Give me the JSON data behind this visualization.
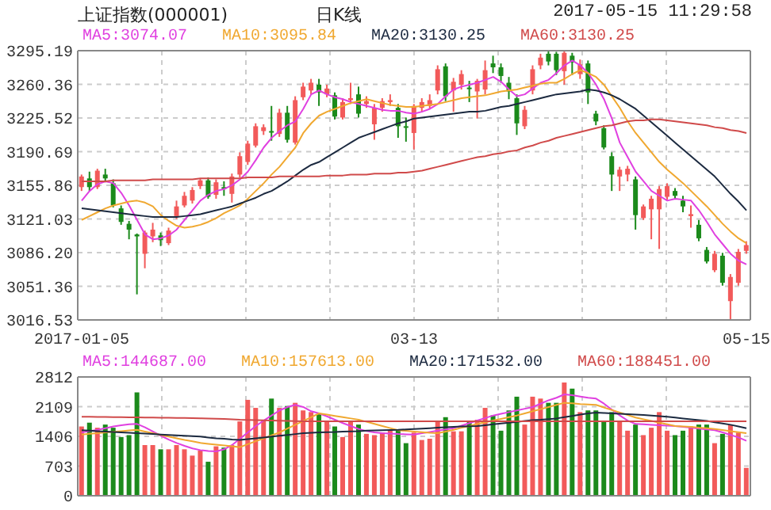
{
  "chart_data": [
    {
      "type": "candlestick",
      "title": "上证指数(000001)",
      "subtitle": "日K线",
      "annotations": [
        "2017-05-15 11:29:58"
      ],
      "categories": [
        "2017-01-05",
        null,
        null,
        null,
        null,
        null,
        null,
        null,
        null,
        null,
        null,
        null,
        null,
        null,
        null,
        null,
        null,
        null,
        null,
        null,
        null,
        null,
        null,
        null,
        null,
        null,
        null,
        null,
        null,
        null,
        null,
        null,
        null,
        null,
        null,
        null,
        null,
        null,
        null,
        null,
        null,
        null,
        "03-13",
        null,
        null,
        null,
        null,
        null,
        null,
        null,
        null,
        null,
        null,
        null,
        null,
        null,
        null,
        null,
        null,
        null,
        null,
        null,
        null,
        null,
        null,
        null,
        null,
        null,
        null,
        null,
        null,
        null,
        null,
        null,
        null,
        null,
        null,
        null,
        null,
        null,
        null,
        null,
        null,
        null,
        "05-15"
      ],
      "ohlc": [
        [
          3154,
          3167,
          3150,
          3165
        ],
        [
          3163,
          3170,
          3150,
          3154
        ],
        [
          3154,
          3173,
          3152,
          3171
        ],
        [
          3167,
          3173,
          3159,
          3163
        ],
        [
          3158,
          3162,
          3133,
          3135
        ],
        [
          3132,
          3135,
          3115,
          3118
        ],
        [
          3116,
          3119,
          3100,
          3110
        ],
        [
          3105,
          3106,
          3043,
          3103
        ],
        [
          3085,
          3109,
          3070,
          3107
        ],
        [
          3103,
          3117,
          3097,
          3110
        ],
        [
          3104,
          3107,
          3093,
          3099
        ],
        [
          3096,
          3112,
          3094,
          3109
        ],
        [
          3124,
          3140,
          3121,
          3134
        ],
        [
          3135,
          3149,
          3133,
          3145
        ],
        [
          3140,
          3154,
          3137,
          3151
        ],
        [
          3155,
          3163,
          3152,
          3161
        ],
        [
          3161,
          3164,
          3142,
          3144
        ],
        [
          3146,
          3162,
          3142,
          3159
        ],
        [
          3154,
          3160,
          3145,
          3152
        ],
        [
          3147,
          3168,
          3138,
          3165
        ],
        [
          3167,
          3190,
          3164,
          3186
        ],
        [
          3180,
          3202,
          3177,
          3199
        ],
        [
          3197,
          3220,
          3195,
          3217
        ],
        [
          3212,
          3219,
          3208,
          3216
        ],
        [
          3212,
          3238,
          3202,
          3211
        ],
        [
          3209,
          3235,
          3206,
          3231
        ],
        [
          3231,
          3238,
          3200,
          3203
        ],
        [
          3200,
          3248,
          3198,
          3244
        ],
        [
          3247,
          3262,
          3244,
          3258
        ],
        [
          3254,
          3266,
          3250,
          3262
        ],
        [
          3260,
          3266,
          3238,
          3252
        ],
        [
          3250,
          3260,
          3247,
          3256
        ],
        [
          3249,
          3252,
          3224,
          3227
        ],
        [
          3226,
          3246,
          3224,
          3242
        ],
        [
          3244,
          3262,
          3240,
          3246
        ],
        [
          3250,
          3258,
          3226,
          3230
        ],
        [
          3240,
          3248,
          3236,
          3243
        ],
        [
          3219,
          3240,
          3203,
          3236
        ],
        [
          3236,
          3246,
          3232,
          3243
        ],
        [
          3242,
          3250,
          3238,
          3244
        ],
        [
          3236,
          3240,
          3205,
          3217
        ],
        [
          3217,
          3226,
          3201,
          3216
        ],
        [
          3210,
          3240,
          3193,
          3238
        ],
        [
          3236,
          3246,
          3232,
          3242
        ],
        [
          3238,
          3250,
          3235,
          3244
        ],
        [
          3254,
          3280,
          3250,
          3276
        ],
        [
          3279,
          3282,
          3243,
          3248
        ],
        [
          3254,
          3267,
          3232,
          3263
        ],
        [
          3260,
          3275,
          3255,
          3271
        ],
        [
          3257,
          3264,
          3242,
          3256
        ],
        [
          3253,
          3266,
          3225,
          3264
        ],
        [
          3255,
          3285,
          3250,
          3275
        ],
        [
          3282,
          3290,
          3272,
          3278
        ],
        [
          3278,
          3282,
          3262,
          3269
        ],
        [
          3262,
          3268,
          3245,
          3253
        ],
        [
          3246,
          3250,
          3208,
          3220
        ],
        [
          3217,
          3238,
          3214,
          3234
        ],
        [
          3254,
          3280,
          3250,
          3276
        ],
        [
          3280,
          3292,
          3276,
          3288
        ],
        [
          3292,
          3295,
          3280,
          3284
        ],
        [
          3292,
          3294,
          3270,
          3275
        ],
        [
          3274,
          3295,
          3260,
          3293
        ],
        [
          3290,
          3293,
          3270,
          3283
        ],
        [
          3271,
          3286,
          3266,
          3281
        ],
        [
          3282,
          3285,
          3240,
          3252
        ],
        [
          3230,
          3233,
          3218,
          3222
        ],
        [
          3215,
          3218,
          3193,
          3195
        ],
        [
          3186,
          3190,
          3150,
          3167
        ],
        [
          3165,
          3175,
          3150,
          3172
        ],
        [
          3167,
          3176,
          3160,
          3173
        ],
        [
          3162,
          3165,
          3110,
          3125
        ],
        [
          3122,
          3136,
          3120,
          3134
        ],
        [
          3131,
          3145,
          3100,
          3142
        ],
        [
          3131,
          3155,
          3090,
          3152
        ],
        [
          3144,
          3158,
          3141,
          3155
        ],
        [
          3150,
          3153,
          3142,
          3145
        ],
        [
          3140,
          3145,
          3128,
          3134
        ],
        [
          3124,
          3135,
          3112,
          3126
        ],
        [
          3115,
          3120,
          3098,
          3101
        ],
        [
          3089,
          3092,
          3075,
          3077
        ],
        [
          3068,
          3088,
          3066,
          3085
        ],
        [
          3083,
          3086,
          3052,
          3055
        ],
        [
          3036,
          3064,
          3017,
          3061
        ],
        [
          3055,
          3090,
          3052,
          3087
        ],
        [
          3088,
          3098,
          3085,
          3094
        ]
      ],
      "colors": [
        "#f25a5a",
        "#1b8a1b",
        "#f25a5a",
        "#1b8a1b",
        "#1b8a1b",
        "#1b8a1b",
        "#1b8a1b",
        "#1b8a1b",
        "#f25a5a",
        "#f25a5a",
        "#1b8a1b",
        "#f25a5a",
        "#f25a5a",
        "#f25a5a",
        "#f25a5a",
        "#f25a5a",
        "#1b8a1b",
        "#f25a5a",
        "#1b8a1b",
        "#f25a5a",
        "#f25a5a",
        "#f25a5a",
        "#f25a5a",
        "#f25a5a",
        "#1b8a1b",
        "#f25a5a",
        "#1b8a1b",
        "#f25a5a",
        "#f25a5a",
        "#f25a5a",
        "#1b8a1b",
        "#f25a5a",
        "#1b8a1b",
        "#f25a5a",
        "#f25a5a",
        "#1b8a1b",
        "#f25a5a",
        "#f25a5a",
        "#f25a5a",
        "#f25a5a",
        "#1b8a1b",
        "#1b8a1b",
        "#f25a5a",
        "#f25a5a",
        "#f25a5a",
        "#f25a5a",
        "#1b8a1b",
        "#f25a5a",
        "#f25a5a",
        "#1b8a1b",
        "#f25a5a",
        "#f25a5a",
        "#1b8a1b",
        "#1b8a1b",
        "#1b8a1b",
        "#1b8a1b",
        "#f25a5a",
        "#f25a5a",
        "#f25a5a",
        "#1b8a1b",
        "#1b8a1b",
        "#f25a5a",
        "#1b8a1b",
        "#f25a5a",
        "#1b8a1b",
        "#1b8a1b",
        "#1b8a1b",
        "#1b8a1b",
        "#f25a5a",
        "#f25a5a",
        "#1b8a1b",
        "#f25a5a",
        "#f25a5a",
        "#f25a5a",
        "#f25a5a",
        "#1b8a1b",
        "#1b8a1b",
        "#f25a5a",
        "#1b8a1b",
        "#1b8a1b",
        "#f25a5a",
        "#1b8a1b",
        "#f25a5a",
        "#f25a5a",
        "#f25a5a"
      ],
      "series": [
        {
          "type": "line",
          "name": "MA5:3074.07",
          "color": "#e040e0",
          "values": [
            3140,
            3150,
            3157,
            3160,
            3158,
            3148,
            3135,
            3120,
            3105,
            3100,
            3101,
            3104,
            3110,
            3120,
            3130,
            3140,
            3146,
            3150,
            3152,
            3156,
            3162,
            3170,
            3182,
            3195,
            3205,
            3212,
            3218,
            3222,
            3235,
            3250,
            3254,
            3250,
            3247,
            3245,
            3242,
            3240,
            3238,
            3236,
            3234,
            3233,
            3233,
            3231,
            3230,
            3232,
            3235,
            3240,
            3248,
            3255,
            3258,
            3260,
            3262,
            3265,
            3268,
            3263,
            3255,
            3248,
            3250,
            3256,
            3262,
            3265,
            3272,
            3280,
            3285,
            3280,
            3272,
            3260,
            3245,
            3225,
            3200,
            3185,
            3170,
            3160,
            3150,
            3145,
            3140,
            3142,
            3141,
            3140,
            3130,
            3118,
            3105,
            3095,
            3085,
            3078,
            3074
          ]
        },
        {
          "type": "line",
          "name": "MA10:3095.84",
          "color": "#f0a830",
          "values": [
            3120,
            3124,
            3128,
            3132,
            3135,
            3137,
            3139,
            3140,
            3138,
            3134,
            3125,
            3119,
            3114,
            3112,
            3113,
            3115,
            3118,
            3122,
            3127,
            3131,
            3135,
            3142,
            3150,
            3158,
            3167,
            3175,
            3185,
            3195,
            3210,
            3220,
            3228,
            3232,
            3235,
            3238,
            3241,
            3243,
            3245,
            3243,
            3241,
            3239,
            3238,
            3237,
            3237,
            3238,
            3239,
            3240,
            3242,
            3244,
            3246,
            3247,
            3248,
            3249,
            3251,
            3253,
            3254,
            3255,
            3257,
            3259,
            3261,
            3262,
            3262,
            3266,
            3271,
            3275,
            3272,
            3268,
            3260,
            3248,
            3236,
            3222,
            3210,
            3200,
            3190,
            3180,
            3172,
            3165,
            3158,
            3150,
            3142,
            3134,
            3125,
            3116,
            3108,
            3101,
            3096
          ]
        },
        {
          "type": "line",
          "name": "MA20:3130.25",
          "color": "#1c2a40",
          "values": [
            3132,
            3131,
            3130,
            3129,
            3128,
            3127,
            3126,
            3125,
            3124,
            3123,
            3123,
            3123,
            3123,
            3124,
            3125,
            3126,
            3128,
            3130,
            3132,
            3134,
            3137,
            3140,
            3143,
            3147,
            3150,
            3155,
            3160,
            3166,
            3172,
            3177,
            3180,
            3185,
            3190,
            3195,
            3200,
            3205,
            3208,
            3211,
            3214,
            3217,
            3220,
            3222,
            3225,
            3226,
            3227,
            3228,
            3229,
            3230,
            3231,
            3232,
            3232,
            3233,
            3235,
            3237,
            3238,
            3240,
            3242,
            3244,
            3246,
            3248,
            3250,
            3251,
            3252,
            3253,
            3255,
            3254,
            3252,
            3249,
            3245,
            3240,
            3235,
            3228,
            3221,
            3214,
            3207,
            3200,
            3193,
            3186,
            3179,
            3172,
            3165,
            3156,
            3147,
            3139,
            3130
          ]
        },
        {
          "type": "line",
          "name": "MA60:3130.25",
          "color": "#d04a4a",
          "values": [
            3160,
            3160,
            3160,
            3160,
            3161,
            3161,
            3161,
            3161,
            3161,
            3162,
            3162,
            3162,
            3162,
            3162,
            3162,
            3163,
            3163,
            3163,
            3163,
            3163,
            3163,
            3164,
            3164,
            3164,
            3164,
            3165,
            3165,
            3165,
            3165,
            3165,
            3165,
            3166,
            3166,
            3166,
            3167,
            3167,
            3167,
            3168,
            3168,
            3168,
            3169,
            3169,
            3170,
            3171,
            3173,
            3175,
            3177,
            3179,
            3181,
            3183,
            3185,
            3186,
            3188,
            3189,
            3191,
            3192,
            3195,
            3197,
            3200,
            3202,
            3205,
            3207,
            3209,
            3211,
            3213,
            3215,
            3217,
            3218,
            3220,
            3222,
            3223,
            3223,
            3224,
            3224,
            3223,
            3222,
            3221,
            3220,
            3219,
            3218,
            3216,
            3215,
            3213,
            3212,
            3210
          ]
        }
      ],
      "ylim": [
        3016.53,
        3295.19
      ],
      "yticks": [
        3016.53,
        3051.36,
        {
          "value": 3086.2,
          "label": "3086.20"
        },
        3121.03,
        3155.86,
        3190.69,
        3225.52,
        3260.36,
        3295.19
      ],
      "grid": true,
      "legend": "top"
    },
    {
      "type": "bar",
      "categories": [
        null,
        null,
        null,
        null,
        null,
        null,
        null,
        null,
        null,
        null,
        null,
        null,
        null,
        null,
        null,
        null,
        null,
        null,
        null,
        null,
        null,
        null,
        null,
        null,
        null,
        null,
        null,
        null,
        null,
        null,
        null,
        null,
        null,
        null,
        null,
        null,
        null,
        null,
        null,
        null,
        null,
        null,
        null,
        null,
        null,
        null,
        null,
        null,
        null,
        null,
        null,
        null,
        null,
        null,
        null,
        null,
        null,
        null,
        null,
        null,
        null,
        null,
        null,
        null,
        null,
        null,
        null,
        null,
        null,
        null,
        null,
        null,
        null,
        null,
        null,
        null,
        null,
        null,
        null,
        null,
        null,
        null,
        null,
        null,
        null
      ],
      "values": [
        1640,
        1730,
        1610,
        1685,
        1610,
        1390,
        1435,
        2447,
        1200,
        1200,
        1100,
        1100,
        1200,
        1100,
        950,
        1070,
        805,
        1170,
        1140,
        1200,
        1760,
        2270,
        2080,
        1790,
        2300,
        2080,
        2125,
        2200,
        2020,
        1980,
        1930,
        1760,
        1640,
        1390,
        1760,
        1685,
        1465,
        1435,
        1495,
        1540,
        1540,
        1245,
        1495,
        1320,
        1350,
        1760,
        1860,
        1525,
        1525,
        1760,
        1800,
        2080,
        1905,
        1540,
        2020,
        2345,
        1685,
        2345,
        2300,
        2200,
        2200,
        2680,
        2535,
        1980,
        2020,
        2020,
        1760,
        1980,
        1760,
        1540,
        1685,
        1435,
        1610,
        1980,
        1540,
        1435,
        1540,
        1640,
        1685,
        1685,
        1245,
        1465,
        1685,
        1495,
        660
      ],
      "colors": [
        "#f25a5a",
        "#1b8a1b",
        "#f25a5a",
        "#1b8a1b",
        "#1b8a1b",
        "#1b8a1b",
        "#1b8a1b",
        "#1b8a1b",
        "#f25a5a",
        "#f25a5a",
        "#1b8a1b",
        "#f25a5a",
        "#f25a5a",
        "#f25a5a",
        "#f25a5a",
        "#f25a5a",
        "#1b8a1b",
        "#f25a5a",
        "#1b8a1b",
        "#f25a5a",
        "#f25a5a",
        "#f25a5a",
        "#f25a5a",
        "#f25a5a",
        "#1b8a1b",
        "#f25a5a",
        "#1b8a1b",
        "#f25a5a",
        "#f25a5a",
        "#f25a5a",
        "#1b8a1b",
        "#f25a5a",
        "#1b8a1b",
        "#f25a5a",
        "#f25a5a",
        "#1b8a1b",
        "#f25a5a",
        "#f25a5a",
        "#f25a5a",
        "#f25a5a",
        "#1b8a1b",
        "#1b8a1b",
        "#f25a5a",
        "#f25a5a",
        "#f25a5a",
        "#f25a5a",
        "#1b8a1b",
        "#f25a5a",
        "#f25a5a",
        "#1b8a1b",
        "#f25a5a",
        "#f25a5a",
        "#1b8a1b",
        "#1b8a1b",
        "#1b8a1b",
        "#1b8a1b",
        "#f25a5a",
        "#f25a5a",
        "#f25a5a",
        "#1b8a1b",
        "#1b8a1b",
        "#f25a5a",
        "#1b8a1b",
        "#f25a5a",
        "#1b8a1b",
        "#1b8a1b",
        "#1b8a1b",
        "#1b8a1b",
        "#f25a5a",
        "#f25a5a",
        "#1b8a1b",
        "#f25a5a",
        "#f25a5a",
        "#f25a5a",
        "#f25a5a",
        "#1b8a1b",
        "#1b8a1b",
        "#f25a5a",
        "#1b8a1b",
        "#1b8a1b",
        "#f25a5a",
        "#1b8a1b",
        "#f25a5a",
        "#f25a5a",
        "#f25a5a"
      ],
      "series": [
        {
          "type": "line",
          "name": "MA5:144687.00",
          "color": "#e040e0",
          "values": [
            1500,
            1530,
            1560,
            1600,
            1640,
            1670,
            1690,
            1700,
            1620,
            1520,
            1420,
            1330,
            1250,
            1180,
            1120,
            1080,
            1060,
            1050,
            1100,
            1200,
            1350,
            1500,
            1650,
            1780,
            1900,
            2020,
            2100,
            2150,
            2100,
            2000,
            1950,
            1880,
            1800,
            1720,
            1650,
            1580,
            1530,
            1500,
            1480,
            1470,
            1460,
            1455,
            1450,
            1480,
            1510,
            1540,
            1570,
            1600,
            1660,
            1720,
            1780,
            1840,
            1900,
            1940,
            1980,
            2020,
            2060,
            2100,
            2180,
            2260,
            2320,
            2400,
            2380,
            2350,
            2320,
            2300,
            2180,
            2040,
            1900,
            1780,
            1700,
            1690,
            1680,
            1670,
            1660,
            1650,
            1630,
            1610,
            1590,
            1570,
            1550,
            1500,
            1440,
            1380,
            1300
          ]
        },
        {
          "type": "line",
          "name": "MA10:157613.00",
          "color": "#f0a830",
          "values": [
            1450,
            1465,
            1480,
            1500,
            1515,
            1530,
            1545,
            1560,
            1520,
            1480,
            1440,
            1400,
            1360,
            1320,
            1290,
            1250,
            1230,
            1210,
            1190,
            1170,
            1150,
            1220,
            1290,
            1360,
            1430,
            1500,
            1590,
            1680,
            1770,
            1860,
            1950,
            1920,
            1890,
            1860,
            1830,
            1800,
            1750,
            1700,
            1650,
            1600,
            1550,
            1535,
            1520,
            1505,
            1490,
            1480,
            1520,
            1560,
            1610,
            1650,
            1700,
            1740,
            1780,
            1820,
            1860,
            1900,
            1950,
            2000,
            2050,
            2100,
            2150,
            2200,
            2190,
            2170,
            2160,
            2150,
            2090,
            2030,
            1970,
            1910,
            1850,
            1810,
            1770,
            1730,
            1690,
            1650,
            1640,
            1630,
            1610,
            1600,
            1580,
            1555,
            1530,
            1505,
            1480
          ]
        },
        {
          "type": "line",
          "name": "MA20:171532.00",
          "color": "#1c2a40",
          "values": [
            1550,
            1540,
            1530,
            1520,
            1510,
            1500,
            1490,
            1480,
            1470,
            1460,
            1450,
            1440,
            1430,
            1420,
            1410,
            1400,
            1380,
            1360,
            1350,
            1330,
            1320,
            1340,
            1360,
            1380,
            1400,
            1420,
            1440,
            1460,
            1480,
            1490,
            1500,
            1505,
            1510,
            1520,
            1525,
            1530,
            1540,
            1545,
            1550,
            1555,
            1560,
            1570,
            1580,
            1590,
            1600,
            1610,
            1620,
            1630,
            1640,
            1645,
            1650,
            1670,
            1690,
            1710,
            1730,
            1750,
            1770,
            1790,
            1800,
            1815,
            1830,
            1860,
            1890,
            1920,
            1950,
            1970,
            1960,
            1950,
            1940,
            1930,
            1920,
            1910,
            1900,
            1885,
            1870,
            1850,
            1830,
            1810,
            1790,
            1770,
            1740,
            1710,
            1680,
            1640,
            1600
          ]
        },
        {
          "type": "line",
          "name": "MA60:188451.00",
          "color": "#d04a4a",
          "values": [
            1870,
            1868,
            1866,
            1864,
            1862,
            1860,
            1858,
            1856,
            1853,
            1850,
            1848,
            1845,
            1842,
            1840,
            1836,
            1832,
            1828,
            1824,
            1818,
            1810,
            1800,
            1795,
            1790,
            1785,
            1780,
            1775,
            1770,
            1766,
            1763,
            1760,
            1760,
            1760,
            1760,
            1760,
            1760,
            1760,
            1760,
            1760,
            1760,
            1760,
            1760,
            1760,
            1760,
            1760,
            1760,
            1760,
            1760,
            1760,
            1760,
            1760,
            1760,
            1760,
            1760,
            1760,
            1760,
            1760,
            1760,
            1760,
            1760,
            1760,
            1760,
            1760,
            1760,
            1760,
            1760,
            1760,
            1760,
            1760,
            1760,
            1760,
            1760,
            1760,
            1760,
            1760,
            1760,
            1760,
            1760,
            1760,
            1760,
            1760,
            1760,
            1760,
            1760,
            1760,
            1760
          ]
        }
      ],
      "ylim": [
        0,
        2812
      ],
      "yticks": [
        0,
        703,
        1406,
        2109,
        2812
      ],
      "grid": true,
      "legend": "top"
    }
  ]
}
